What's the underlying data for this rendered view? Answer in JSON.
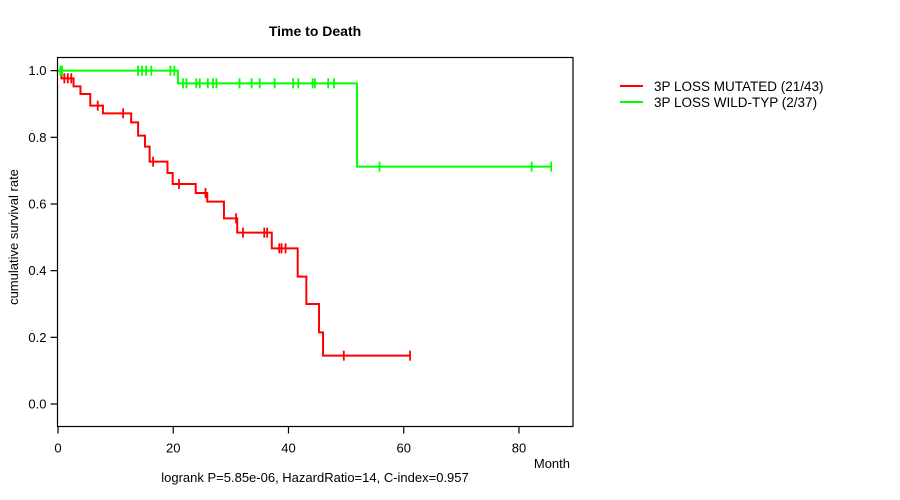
{
  "title": "Time to Death",
  "footer": "logrank P=5.85e-06, HazardRatio=14, C-index=0.957",
  "axes": {
    "x_label": "Month",
    "y_label": "cumulative survival rate",
    "x_ticks": [
      {
        "value": 0,
        "label": "0"
      },
      {
        "value": 20,
        "label": "20"
      },
      {
        "value": 40,
        "label": "40"
      },
      {
        "value": 60,
        "label": "60"
      },
      {
        "value": 80,
        "label": "80"
      }
    ],
    "y_ticks": [
      {
        "value": 0.0,
        "label": "0.0"
      },
      {
        "value": 0.2,
        "label": "0.2"
      },
      {
        "value": 0.4,
        "label": "0.4"
      },
      {
        "value": 0.6,
        "label": "0.6"
      },
      {
        "value": 0.8,
        "label": "0.8"
      },
      {
        "value": 1.0,
        "label": "1.0"
      }
    ]
  },
  "chart_data": {
    "type": "line",
    "variant": "kaplan_meier_step",
    "title": "Time to Death",
    "xlabel": "Month",
    "ylabel": "cumulative survival rate",
    "xlim": [
      0,
      89
    ],
    "ylim": [
      0,
      1.0
    ],
    "grid": false,
    "legend_position": "right_outside",
    "annotation": "logrank P=5.85e-06, HazardRatio=14, C-index=0.957",
    "series": [
      {
        "name": "3P LOSS MUTATED (21/43)",
        "color": "#ff0000",
        "steps": [
          [
            0,
            1.0
          ],
          [
            0.6,
            0.977
          ],
          [
            2.7,
            0.953
          ],
          [
            3.9,
            0.93
          ],
          [
            5.6,
            0.895
          ],
          [
            7.8,
            0.872
          ],
          [
            12.7,
            0.845
          ],
          [
            13.9,
            0.805
          ],
          [
            15.1,
            0.772
          ],
          [
            15.9,
            0.727
          ],
          [
            19.0,
            0.693
          ],
          [
            19.9,
            0.66
          ],
          [
            23.9,
            0.633
          ],
          [
            25.9,
            0.607
          ],
          [
            28.8,
            0.557
          ],
          [
            31.1,
            0.514
          ],
          [
            37.1,
            0.467
          ],
          [
            41.6,
            0.382
          ],
          [
            43.1,
            0.3
          ],
          [
            45.3,
            0.215
          ],
          [
            46.0,
            0.145
          ]
        ],
        "end_time": 61.1,
        "censor_times": [
          1.1,
          1.7,
          2.3,
          6.9,
          11.3,
          16.5,
          21.0,
          25.6,
          30.9,
          32.1,
          35.8,
          36.3,
          38.4,
          38.8,
          39.5,
          49.6,
          61.1
        ]
      },
      {
        "name": "3P LOSS WILD-TYP (2/37)",
        "color": "#00ff00",
        "steps": [
          [
            0,
            1.0
          ],
          [
            20.8,
            0.962
          ],
          [
            51.9,
            0.712
          ]
        ],
        "end_time": 85.6,
        "censor_times": [
          0.4,
          0.7,
          13.9,
          14.6,
          15.3,
          16.2,
          19.5,
          20.2,
          21.7,
          22.3,
          24.0,
          24.6,
          26.0,
          26.9,
          27.5,
          31.5,
          33.6,
          35.0,
          37.6,
          40.8,
          41.7,
          44.2,
          44.6,
          46.9,
          47.9,
          55.8,
          82.2,
          85.6
        ]
      }
    ]
  }
}
